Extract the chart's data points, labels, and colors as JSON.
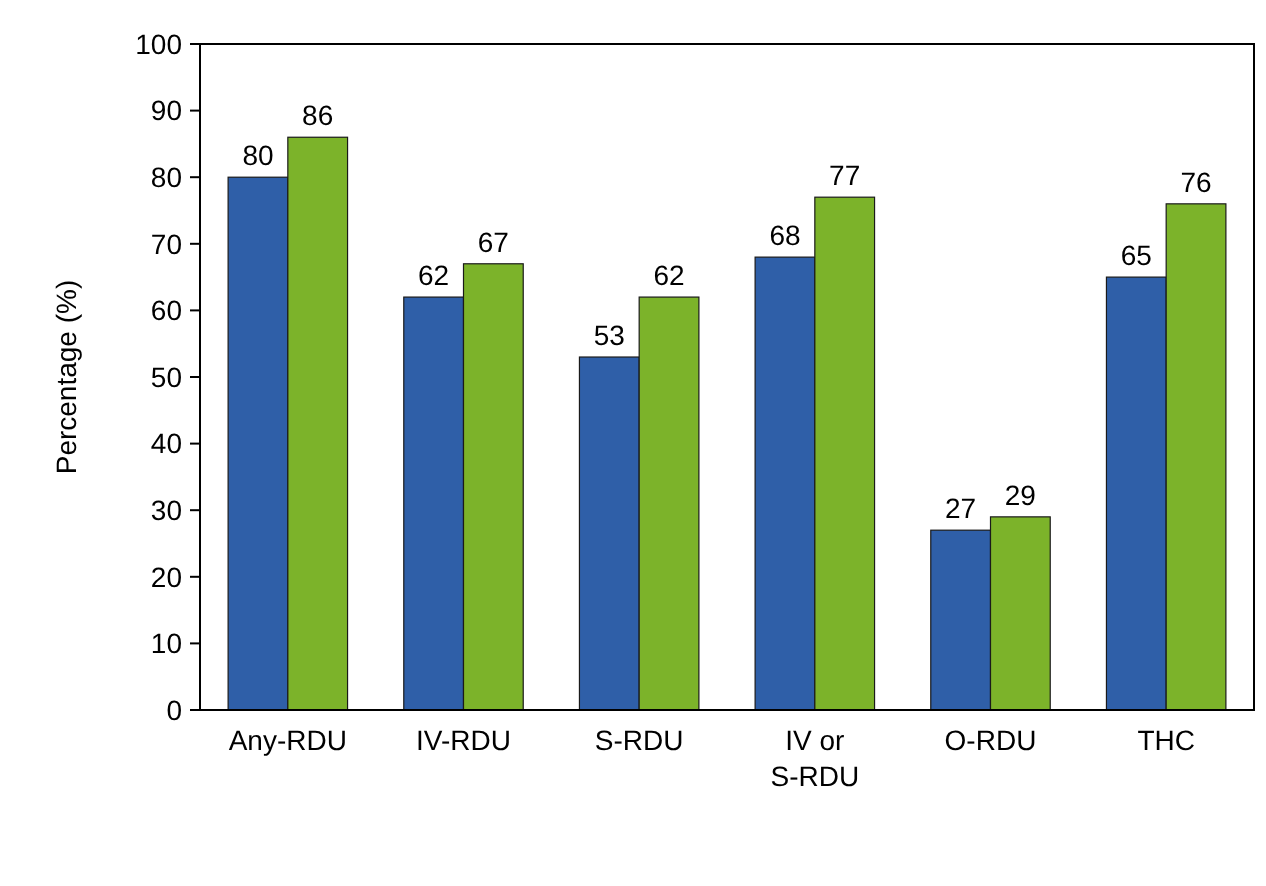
{
  "chart_data": {
    "type": "bar",
    "ylabel": "Percentage (%)",
    "categories": [
      "Any-RDU",
      "IV-RDU",
      "S-RDU",
      "IV or\nS-RDU",
      "O-RDU",
      "THC"
    ],
    "series": [
      {
        "color": "#2f5fa8",
        "values": [
          80,
          62,
          53,
          68,
          27,
          65
        ]
      },
      {
        "color": "#7cb32a",
        "values": [
          86,
          67,
          62,
          77,
          29,
          76
        ]
      }
    ],
    "ylim": [
      0,
      100
    ],
    "yticks": [
      0,
      10,
      20,
      30,
      40,
      50,
      60,
      70,
      80,
      90,
      100
    ],
    "grid": false,
    "data_labels": true
  }
}
